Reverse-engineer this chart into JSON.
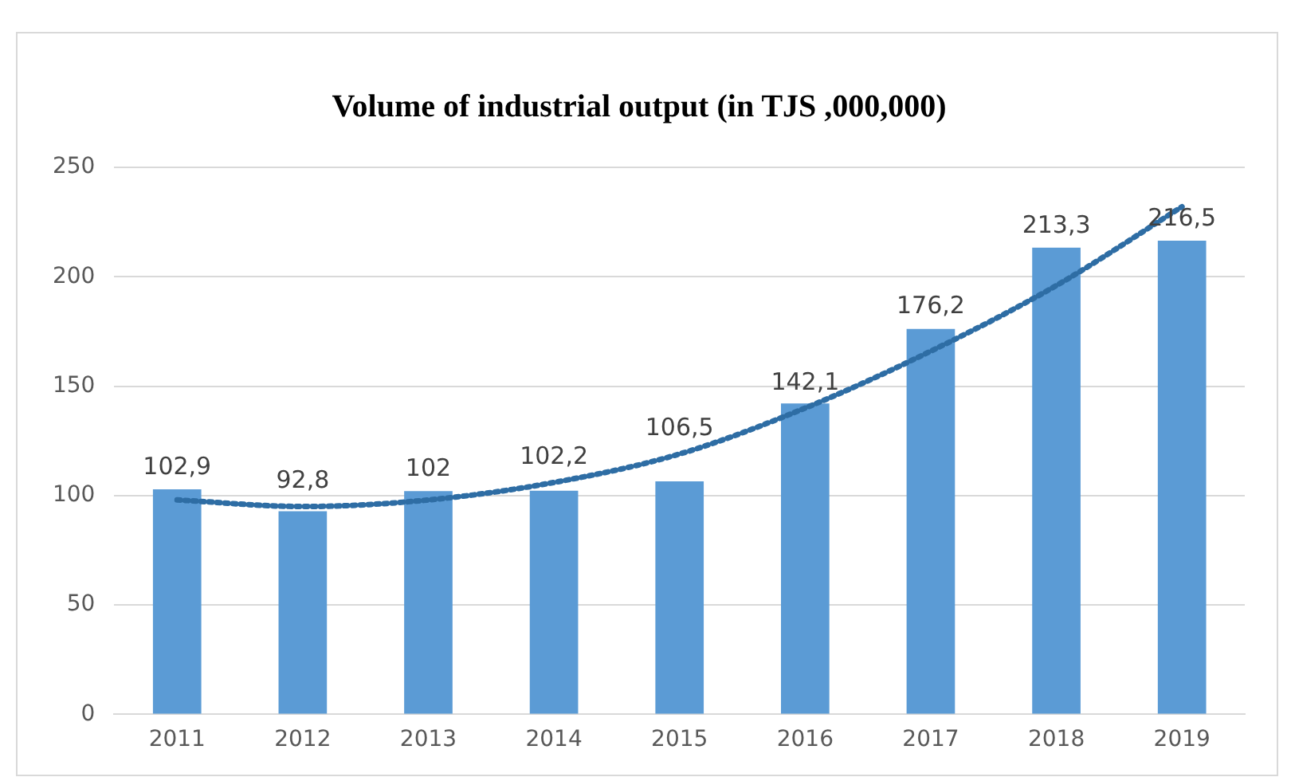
{
  "chart_data": {
    "type": "bar",
    "title": "Volume of industrial output (in TJS ,000,000)",
    "categories": [
      "2011",
      "2012",
      "2013",
      "2014",
      "2015",
      "2016",
      "2017",
      "2018",
      "2019"
    ],
    "series": [
      {
        "color": "#5b9bd5",
        "values": [
          102.9,
          92.8,
          102,
          102.2,
          106.5,
          142.1,
          176.2,
          213.3,
          216.5
        ],
        "value_labels": [
          "102,9",
          "92,8",
          "102",
          "102,2",
          "106,5",
          "142,1",
          "176,2",
          "213,3",
          "216,5"
        ]
      },
      {
        "type": "line",
        "color": "#2e6da4",
        "values": [
          98,
          95,
          98,
          106,
          119,
          140,
          166,
          196,
          232
        ],
        "line_style": "dotted",
        "marker": "none"
      }
    ],
    "ylim": [
      0,
      250
    ],
    "yticks": [
      0,
      50,
      100,
      150,
      200,
      250
    ],
    "grid": "y",
    "legend": false
  }
}
